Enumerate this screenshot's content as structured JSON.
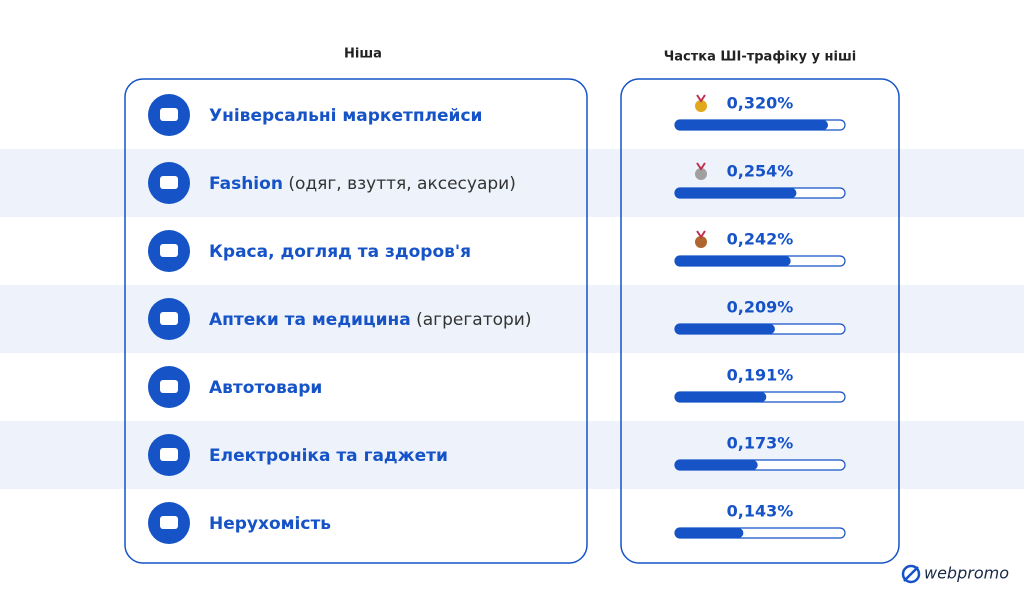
{
  "chart_data": {
    "type": "bar",
    "category_header": "Ніша",
    "value_header": "Частка ШІ-трафіку у ніші",
    "categories": [
      "Універсальні маркетплейси",
      "Fashion",
      "Краса, догляд та здоров'я",
      "Аптеки та медицина",
      "Автотовари",
      "Електроніка та гаджети",
      "Нерухомість"
    ],
    "category_notes": [
      null,
      "(одяг, взуття, аксесуари)",
      null,
      "(агрегатори)",
      null,
      null,
      null
    ],
    "values": [
      0.32,
      0.254,
      0.242,
      0.209,
      0.191,
      0.173,
      0.143
    ],
    "value_labels": [
      "0,320%",
      "0,254%",
      "0,242%",
      "0,209%",
      "0,191%",
      "0,173%",
      "0,143%"
    ],
    "color": "#1553c7"
  },
  "logo": "webpromo"
}
